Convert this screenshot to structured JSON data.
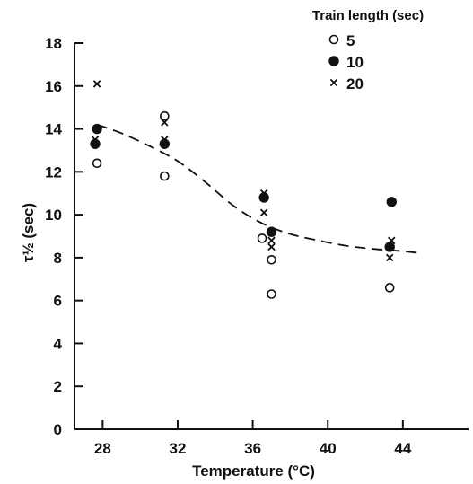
{
  "chart_data": {
    "type": "scatter",
    "xlabel": "Temperature (°C)",
    "ylabel": "τ½ (sec)",
    "xlim": [
      26.5,
      47.5
    ],
    "ylim": [
      0,
      18
    ],
    "xticks": [
      28,
      32,
      36,
      40,
      44
    ],
    "yticks": [
      0,
      2,
      4,
      6,
      8,
      10,
      12,
      14,
      16,
      18
    ],
    "grid": false,
    "legend": {
      "title": "Train length (sec)",
      "placement": "top-right"
    },
    "series": [
      {
        "name": "5",
        "marker": "open-circle",
        "points": [
          [
            27.7,
            12.4
          ],
          [
            31.3,
            14.6
          ],
          [
            31.3,
            11.8
          ],
          [
            36.5,
            8.9
          ],
          [
            37.0,
            7.9
          ],
          [
            37.0,
            6.3
          ],
          [
            43.3,
            8.5
          ],
          [
            43.3,
            6.6
          ]
        ]
      },
      {
        "name": "10",
        "marker": "filled-circle",
        "points": [
          [
            27.7,
            14.0
          ],
          [
            27.6,
            13.3
          ],
          [
            31.3,
            13.3
          ],
          [
            36.6,
            10.8
          ],
          [
            37.0,
            9.2
          ],
          [
            43.4,
            10.6
          ],
          [
            43.3,
            8.5
          ]
        ]
      },
      {
        "name": "20",
        "marker": "x",
        "points": [
          [
            27.7,
            16.1
          ],
          [
            27.6,
            13.5
          ],
          [
            31.3,
            14.3
          ],
          [
            31.3,
            13.5
          ],
          [
            36.6,
            11.0
          ],
          [
            36.6,
            10.1
          ],
          [
            37.0,
            8.8
          ],
          [
            37.0,
            8.5
          ],
          [
            43.4,
            8.8
          ],
          [
            43.3,
            8.0
          ]
        ]
      }
    ],
    "fit_curve": {
      "style": "dashed",
      "points": [
        [
          27.7,
          14.2
        ],
        [
          29,
          13.8
        ],
        [
          30.5,
          13.2
        ],
        [
          32,
          12.5
        ],
        [
          33.5,
          11.5
        ],
        [
          35,
          10.4
        ],
        [
          36.5,
          9.6
        ],
        [
          38,
          9.1
        ],
        [
          39.5,
          8.8
        ],
        [
          41,
          8.55
        ],
        [
          42.5,
          8.4
        ],
        [
          44,
          8.3
        ],
        [
          45,
          8.2
        ]
      ]
    }
  }
}
